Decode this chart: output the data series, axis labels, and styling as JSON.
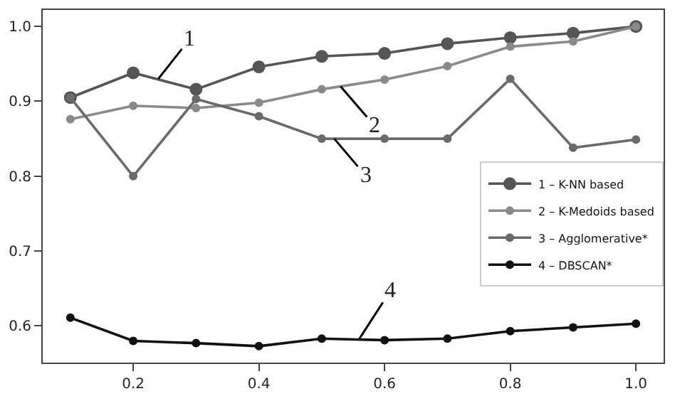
{
  "chart_data": {
    "type": "line",
    "x": [
      0.1,
      0.2,
      0.3,
      0.4,
      0.5,
      0.6,
      0.7,
      0.8,
      0.9,
      1.0
    ],
    "series": [
      {
        "name": "1 – K-NN based",
        "color": "#555555",
        "values": [
          0.905,
          0.938,
          0.916,
          0.946,
          0.96,
          0.964,
          0.977,
          0.985,
          0.991,
          1.0
        ]
      },
      {
        "name": "2 – K-Medoids based",
        "color": "#8a8a8a",
        "values": [
          0.876,
          0.894,
          0.891,
          0.898,
          0.916,
          0.929,
          0.947,
          0.973,
          0.98,
          1.0
        ]
      },
      {
        "name": "3 – Agglomerative*",
        "color": "#6a6a6a",
        "values": [
          0.905,
          0.8,
          0.903,
          0.88,
          0.85,
          0.85,
          0.85,
          0.93,
          0.838,
          0.849
        ]
      },
      {
        "name": "4 – DBSCAN*",
        "color": "#111111",
        "values": [
          0.611,
          0.58,
          0.577,
          0.573,
          0.583,
          0.581,
          0.583,
          0.593,
          0.598,
          0.603
        ]
      }
    ],
    "xlim": [
      0.056,
      1.044
    ],
    "xticks": [
      0.2,
      0.4,
      0.6,
      0.8,
      {
        "value": 1.0,
        "label": "1.0"
      }
    ],
    "ylim": [
      0.551,
      1.022
    ],
    "yticks": [
      0.6,
      0.7,
      0.8,
      0.9,
      {
        "value": 1.0,
        "label": "1.0"
      }
    ],
    "annotations": [
      {
        "text": "1",
        "x": 0.24,
        "y": 0.93
      },
      {
        "text": "2",
        "x": 0.53,
        "y": 0.92
      },
      {
        "text": "3",
        "x": 0.52,
        "y": 0.85
      },
      {
        "text": "4",
        "x": 0.56,
        "y": 0.583
      }
    ],
    "legend": "right",
    "marker": "circle",
    "line_style": "solid"
  }
}
